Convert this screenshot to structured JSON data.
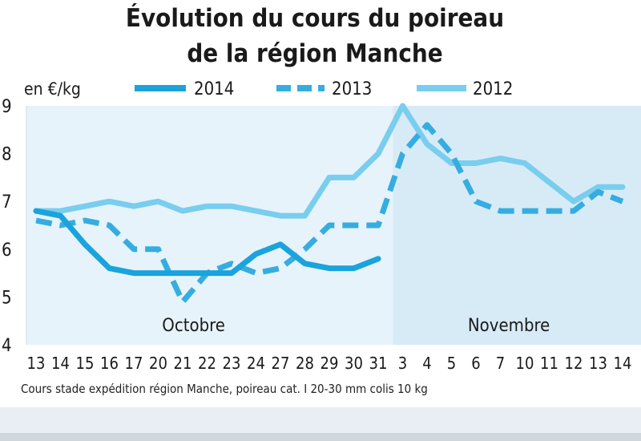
{
  "chart_data": {
    "type": "line",
    "title_line1": "Évolution du cours du poireau",
    "title_line2": "de la région Manche",
    "ylabel": "en €/kg",
    "ylim": [
      4,
      9
    ],
    "yticks": [
      "4",
      "5",
      "6",
      "7",
      "8",
      "9"
    ],
    "categories": [
      "13",
      "14",
      "15",
      "16",
      "17",
      "20",
      "21",
      "22",
      "23",
      "24",
      "27",
      "28",
      "29",
      "30",
      "31",
      "3",
      "4",
      "5",
      "6",
      "7",
      "10",
      "11",
      "12",
      "13",
      "14"
    ],
    "periods": [
      {
        "label": "Octobre",
        "from": 0,
        "to": 14
      },
      {
        "label": "Novembre",
        "from": 15,
        "to": 24
      }
    ],
    "legend": [
      "2014",
      "2013",
      "2012"
    ],
    "series": [
      {
        "name": "2014",
        "color": "#1aa3dc",
        "style": "solid",
        "values": [
          6.8,
          6.7,
          6.1,
          5.6,
          5.5,
          5.5,
          5.5,
          5.5,
          5.5,
          5.9,
          6.1,
          5.7,
          5.6,
          5.6,
          5.8,
          null,
          null,
          null,
          null,
          null,
          null,
          null,
          null,
          null,
          null
        ]
      },
      {
        "name": "2013",
        "color": "#35ade0",
        "style": "dashed",
        "values": [
          6.6,
          6.5,
          6.6,
          6.5,
          6.0,
          6.0,
          4.9,
          5.5,
          5.7,
          5.5,
          5.6,
          6.0,
          6.5,
          6.5,
          6.5,
          8.0,
          8.6,
          8.0,
          7.0,
          6.8,
          6.8,
          6.8,
          6.8,
          7.2,
          7.0
        ]
      },
      {
        "name": "2012",
        "color": "#79cdee",
        "style": "solid",
        "values": [
          6.8,
          6.8,
          6.9,
          7.0,
          6.9,
          7.0,
          6.8,
          6.9,
          6.9,
          6.8,
          6.7,
          6.7,
          7.5,
          7.5,
          8.0,
          9.0,
          8.2,
          7.8,
          7.8,
          7.9,
          7.8,
          7.4,
          7.0,
          7.3,
          7.3
        ]
      }
    ],
    "source": "Cours stade expédition région Manche, poireau cat. I 20-30 mm colis 10 kg"
  }
}
